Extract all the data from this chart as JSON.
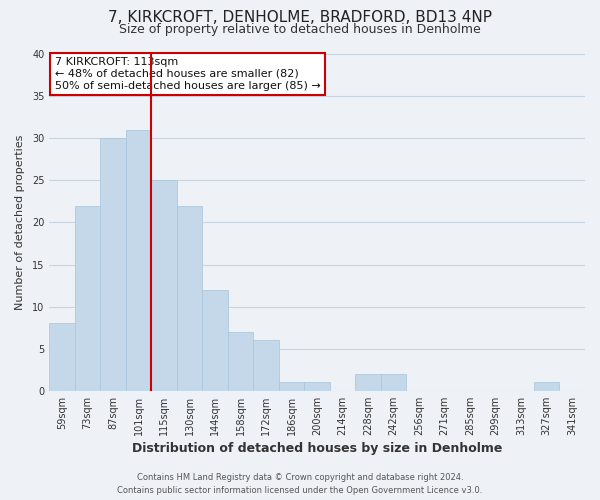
{
  "title": "7, KIRKCROFT, DENHOLME, BRADFORD, BD13 4NP",
  "subtitle": "Size of property relative to detached houses in Denholme",
  "xlabel": "Distribution of detached houses by size in Denholme",
  "ylabel": "Number of detached properties",
  "bar_labels": [
    "59sqm",
    "73sqm",
    "87sqm",
    "101sqm",
    "115sqm",
    "130sqm",
    "144sqm",
    "158sqm",
    "172sqm",
    "186sqm",
    "200sqm",
    "214sqm",
    "228sqm",
    "242sqm",
    "256sqm",
    "271sqm",
    "285sqm",
    "299sqm",
    "313sqm",
    "327sqm",
    "341sqm"
  ],
  "bar_values": [
    8,
    22,
    30,
    31,
    25,
    22,
    12,
    7,
    6,
    1,
    1,
    0,
    2,
    2,
    0,
    0,
    0,
    0,
    0,
    1,
    0
  ],
  "bar_color": "#c5d8ea",
  "bar_edge_color": "#a8c4da",
  "vline_x": 3.5,
  "vline_color": "#cc0000",
  "annotation_title": "7 KIRKCROFT: 113sqm",
  "annotation_line1": "← 48% of detached houses are smaller (82)",
  "annotation_line2": "50% of semi-detached houses are larger (85) →",
  "annotation_box_facecolor": "#ffffff",
  "annotation_box_edgecolor": "#cc0000",
  "ylim": [
    0,
    40
  ],
  "yticks": [
    0,
    5,
    10,
    15,
    20,
    25,
    30,
    35,
    40
  ],
  "grid_color": "#c8d4e0",
  "background_color": "#eef2f7",
  "footer_line1": "Contains HM Land Registry data © Crown copyright and database right 2024.",
  "footer_line2": "Contains public sector information licensed under the Open Government Licence v3.0.",
  "title_fontsize": 11,
  "subtitle_fontsize": 9,
  "xlabel_fontsize": 9,
  "ylabel_fontsize": 8,
  "tick_fontsize": 7,
  "annotation_fontsize": 8,
  "footer_fontsize": 6
}
